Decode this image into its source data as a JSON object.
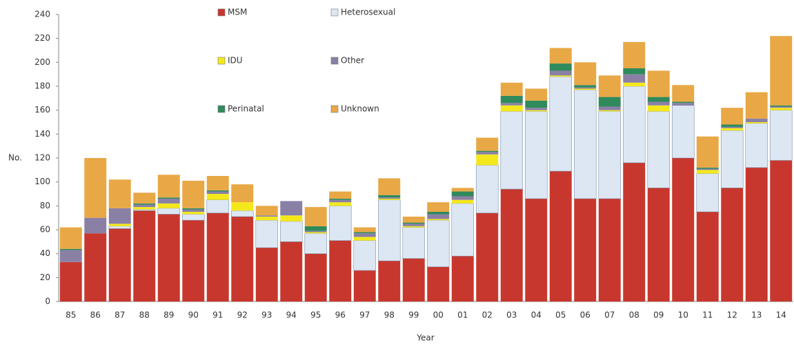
{
  "chart_data": {
    "type": "stacked_bar",
    "x_label": "Year",
    "y_label": "No.",
    "categories": [
      "85",
      "86",
      "87",
      "88",
      "89",
      "90",
      "91",
      "92",
      "93",
      "94",
      "95",
      "96",
      "97",
      "98",
      "99",
      "00",
      "01",
      "02",
      "03",
      "04",
      "05",
      "06",
      "07",
      "08",
      "09",
      "10",
      "11",
      "12",
      "13",
      "14"
    ],
    "series": [
      {
        "name": "MSM",
        "color": "#c8372d",
        "values": [
          33,
          57,
          61,
          76,
          73,
          68,
          74,
          71,
          45,
          50,
          40,
          51,
          26,
          34,
          36,
          29,
          38,
          74,
          94,
          86,
          109,
          86,
          86,
          116,
          95,
          120,
          75,
          95,
          112,
          118
        ]
      },
      {
        "name": "Heterosexual",
        "color": "#dde7f3",
        "values": [
          0,
          0,
          2,
          1,
          5,
          5,
          11,
          5,
          23,
          17,
          17,
          29,
          25,
          51,
          26,
          39,
          44,
          40,
          65,
          73,
          79,
          91,
          73,
          64,
          64,
          44,
          32,
          48,
          37,
          42
        ]
      },
      {
        "name": "IDU",
        "color": "#f4e81c",
        "values": [
          0,
          0,
          2,
          2,
          4,
          2,
          5,
          7,
          3,
          5,
          1,
          3,
          3,
          1,
          1,
          1,
          3,
          9,
          5,
          1,
          1,
          1,
          1,
          3,
          5,
          0,
          3,
          2,
          1,
          2
        ]
      },
      {
        "name": "Other",
        "color": "#8a80a6",
        "values": [
          10,
          13,
          13,
          2,
          4,
          2,
          2,
          0,
          1,
          12,
          1,
          2,
          3,
          1,
          2,
          4,
          3,
          2,
          2,
          2,
          4,
          1,
          3,
          7,
          3,
          2,
          1,
          1,
          3,
          1
        ]
      },
      {
        "name": "Perinatal",
        "color": "#2f8a5c",
        "values": [
          1,
          0,
          0,
          1,
          1,
          1,
          1,
          0,
          0,
          0,
          4,
          1,
          1,
          2,
          1,
          2,
          4,
          1,
          6,
          6,
          6,
          2,
          8,
          5,
          4,
          1,
          1,
          2,
          0,
          1
        ]
      },
      {
        "name": "Unknown",
        "color": "#e8a845",
        "values": [
          18,
          50,
          24,
          9,
          19,
          23,
          12,
          15,
          8,
          0,
          16,
          6,
          4,
          14,
          5,
          8,
          3,
          11,
          11,
          10,
          13,
          19,
          18,
          22,
          22,
          14,
          26,
          14,
          22,
          58
        ]
      }
    ],
    "ylim": [
      0,
      240
    ],
    "yticks": [
      0,
      20,
      40,
      60,
      80,
      100,
      120,
      140,
      160,
      180,
      200,
      220,
      240
    ],
    "grid": false
  }
}
